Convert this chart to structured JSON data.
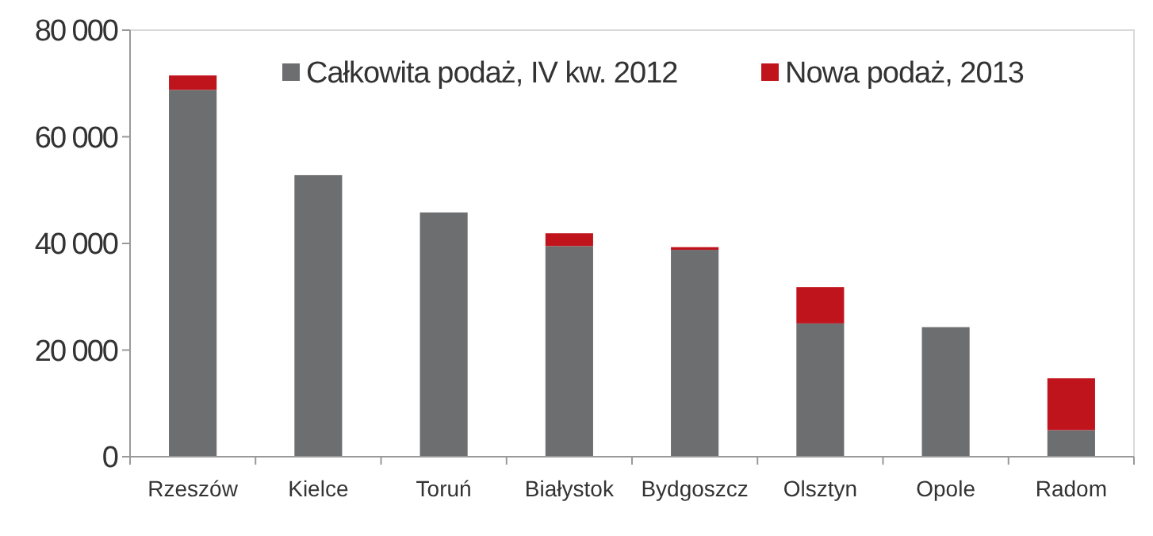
{
  "chart_data": {
    "type": "bar",
    "stacked": true,
    "categories": [
      "Rzeszów",
      "Kielce",
      "Toruń",
      "Białystok",
      "Bydgoszcz",
      "Olsztyn",
      "Opole",
      "Radom"
    ],
    "series": [
      {
        "name": "Całkowita podaż, IV kw. 2012",
        "color": "#6d6e70",
        "values": [
          68800,
          52800,
          45800,
          39500,
          38800,
          25000,
          24300,
          5000
        ]
      },
      {
        "name": "Nowa podaż, 2013",
        "color": "#c0141c",
        "values": [
          2700,
          0,
          0,
          2400,
          500,
          6800,
          0,
          9700
        ]
      }
    ],
    "ylim": [
      0,
      80000
    ],
    "yticks": [
      {
        "value": 0,
        "label": "0"
      },
      {
        "value": 20000,
        "label": "20 000"
      },
      {
        "value": 40000,
        "label": "40 000"
      },
      {
        "value": 60000,
        "label": "60 000"
      },
      {
        "value": 80000,
        "label": "80 000"
      }
    ],
    "grid": false,
    "legend": "top"
  }
}
